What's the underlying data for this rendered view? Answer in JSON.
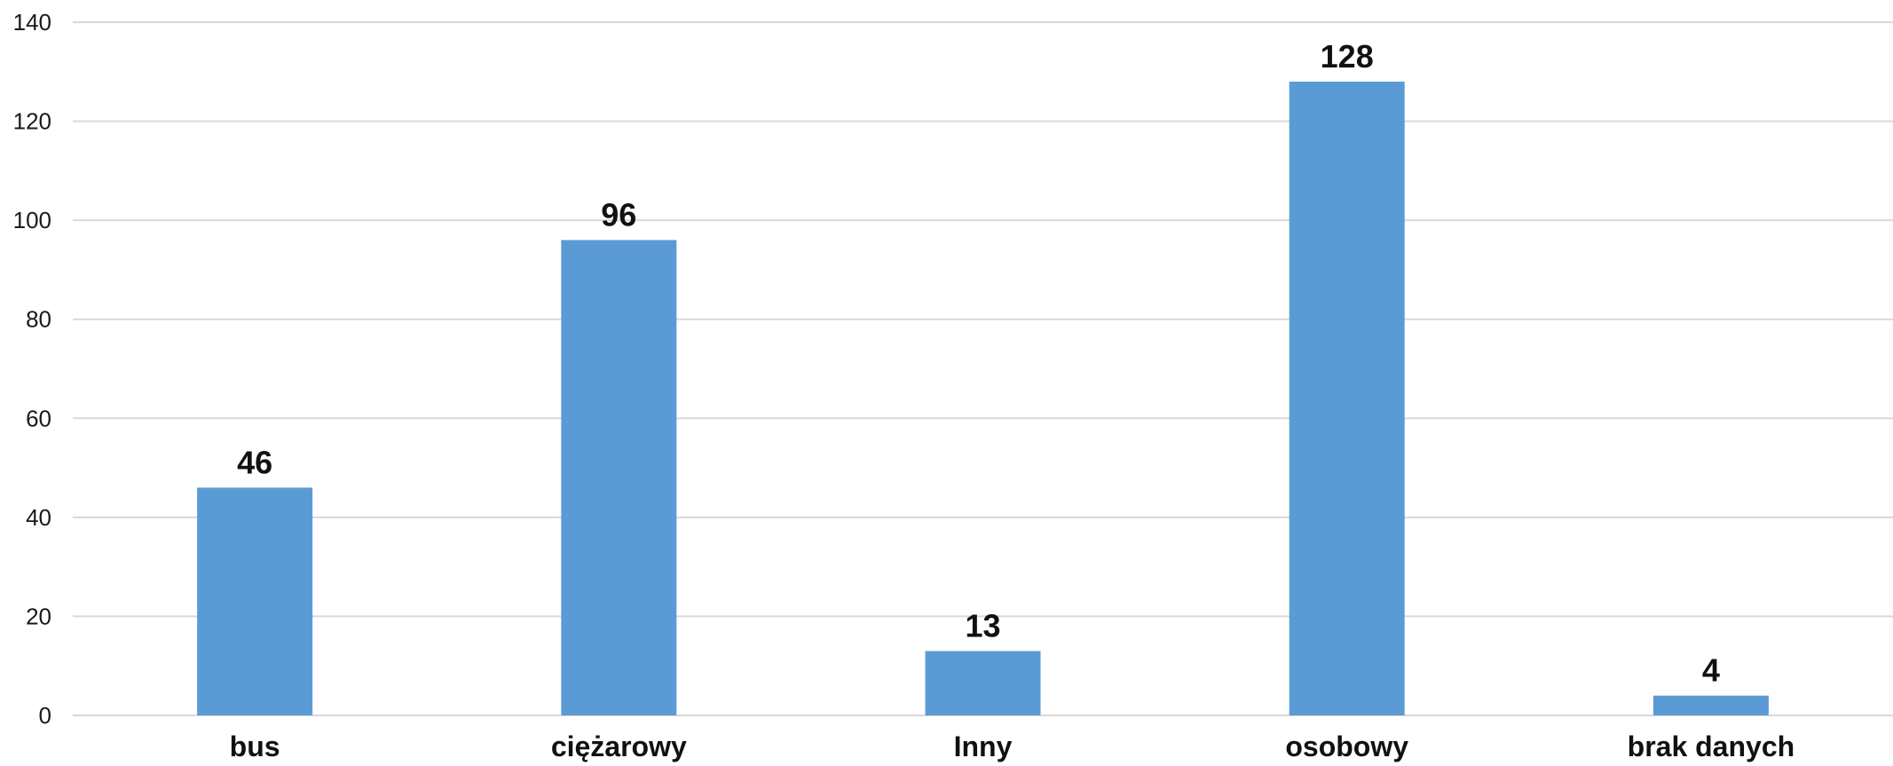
{
  "chart_data": {
    "type": "bar",
    "categories": [
      "bus",
      "ciężarowy",
      "Inny",
      "osobowy",
      "brak danych"
    ],
    "values": [
      46,
      96,
      13,
      128,
      4
    ],
    "title": "",
    "xlabel": "",
    "ylabel": "",
    "ylim": [
      0,
      140
    ],
    "yticks": [
      0,
      20,
      40,
      60,
      80,
      100,
      120,
      140
    ],
    "grid": true,
    "legend": "none",
    "bar_color": "#5b9bd5",
    "data_labels": true
  }
}
